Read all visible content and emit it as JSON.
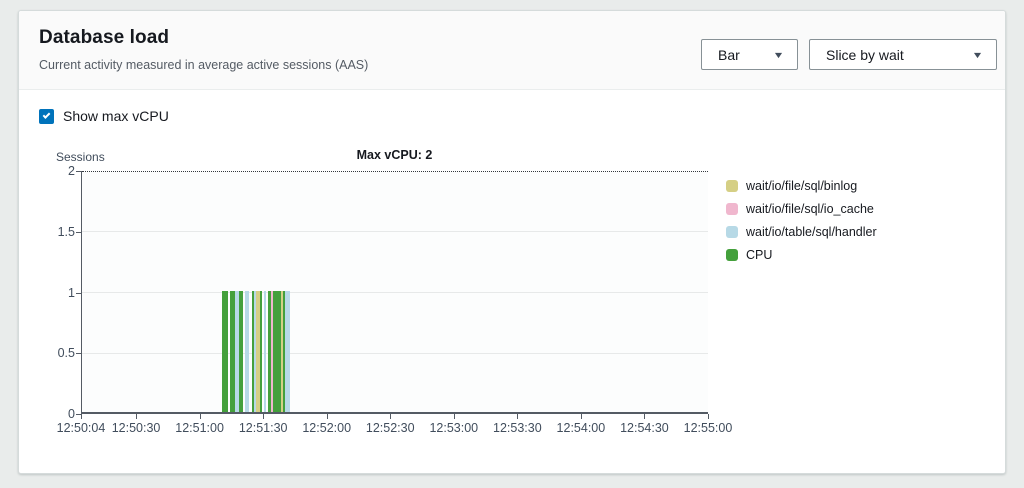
{
  "card": {
    "header": {
      "title": "Database load",
      "subtitle": "Current activity measured in average active sessions (AAS)",
      "controls": [
        {
          "label": "Bar"
        },
        {
          "label": "Slice by wait"
        }
      ]
    },
    "show_max_vcpu": {
      "label": "Show max vCPU",
      "checked": true
    }
  },
  "colors": {
    "accent_checkbox": "#0073bb",
    "cpu": "#44a03c",
    "binlog": "#d5cf85",
    "io_cache": "#f0b7ce",
    "handler": "#b7d9e6",
    "max_line": "#33383d"
  },
  "chart_data": {
    "type": "bar",
    "title": "Max vCPU: 2",
    "ylabel": "Sessions",
    "xlabel": "",
    "ylim": [
      0,
      2
    ],
    "y_ticks": [
      0,
      0.5,
      1,
      1.5,
      2
    ],
    "x_ticks": [
      "12:50:04",
      "12:50:30",
      "12:51:00",
      "12:51:30",
      "12:52:00",
      "12:52:30",
      "12:53:00",
      "12:53:30",
      "12:54:00",
      "12:54:30",
      "12:55:00"
    ],
    "x_range": [
      "12:50:04",
      "12:55:00"
    ],
    "grid": true,
    "legend_position": "right",
    "max_vcpu": {
      "label": "Max vCPU: 2",
      "value": 2
    },
    "bar_width_seconds": 1,
    "legend": [
      {
        "key": "binlog",
        "label": "wait/io/file/sql/binlog",
        "color": "#d5cf85"
      },
      {
        "key": "io_cache",
        "label": "wait/io/file/sql/io_cache",
        "color": "#f0b7ce"
      },
      {
        "key": "handler",
        "label": "wait/io/table/sql/handler",
        "color": "#b7d9e6"
      },
      {
        "key": "cpu",
        "label": "CPU",
        "color": "#44a03c"
      }
    ],
    "bars": [
      {
        "time": "12:51:10",
        "value": 1,
        "wait": "cpu"
      },
      {
        "time": "12:51:11",
        "value": 1,
        "wait": "cpu"
      },
      {
        "time": "12:51:12",
        "value": 1,
        "wait": "cpu"
      },
      {
        "time": "12:51:14",
        "value": 1,
        "wait": "cpu"
      },
      {
        "time": "12:51:15",
        "value": 1,
        "wait": "cpu"
      },
      {
        "time": "12:51:16",
        "value": 1,
        "wait": "handler"
      },
      {
        "time": "12:51:17",
        "value": 1,
        "wait": "handler"
      },
      {
        "time": "12:51:18",
        "value": 1,
        "wait": "cpu"
      },
      {
        "time": "12:51:19",
        "value": 1,
        "wait": "cpu"
      },
      {
        "time": "12:51:21",
        "value": 1,
        "wait": "handler"
      },
      {
        "time": "12:51:22",
        "value": 1,
        "wait": "handler"
      },
      {
        "time": "12:51:24",
        "value": 1,
        "wait": "cpu"
      },
      {
        "time": "12:51:25",
        "value": 1,
        "wait": "handler"
      },
      {
        "time": "12:51:26",
        "value": 1,
        "wait": "binlog"
      },
      {
        "time": "12:51:27",
        "value": 1,
        "wait": "binlog"
      },
      {
        "time": "12:51:28",
        "value": 1,
        "wait": "cpu"
      },
      {
        "time": "12:51:30",
        "value": 1,
        "wait": "handler"
      },
      {
        "time": "12:51:32",
        "value": 1,
        "wait": "cpu"
      },
      {
        "time": "12:51:33",
        "value": 1,
        "wait": "io_cache"
      },
      {
        "time": "12:51:34",
        "value": 1,
        "wait": "cpu"
      },
      {
        "time": "12:51:35",
        "value": 1,
        "wait": "cpu"
      },
      {
        "time": "12:51:36",
        "value": 1,
        "wait": "cpu"
      },
      {
        "time": "12:51:37",
        "value": 1,
        "wait": "cpu"
      },
      {
        "time": "12:51:38",
        "value": 1,
        "wait": "binlog"
      },
      {
        "time": "12:51:39",
        "value": 1,
        "wait": "cpu"
      },
      {
        "time": "12:51:40",
        "value": 1,
        "wait": "handler"
      },
      {
        "time": "12:51:41",
        "value": 1,
        "wait": "handler"
      }
    ]
  }
}
